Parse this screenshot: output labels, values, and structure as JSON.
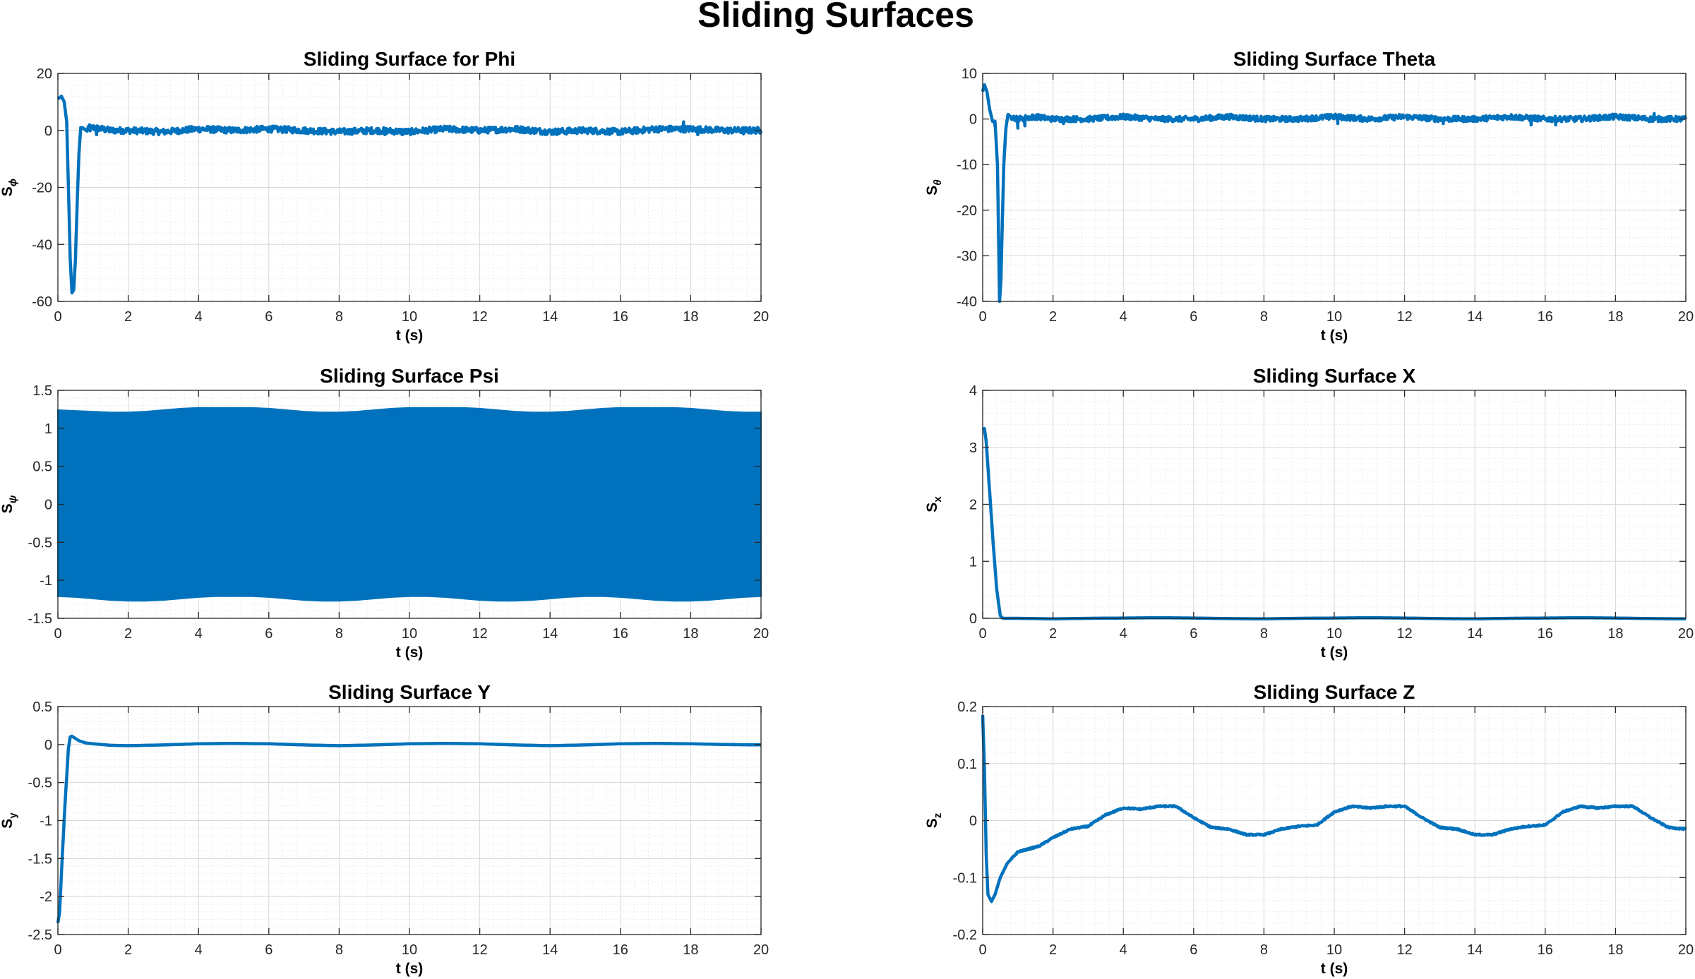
{
  "figure": {
    "title": "Sliding Surfaces",
    "accent_color": "#0072BD"
  },
  "chart_data": [
    {
      "type": "line",
      "title": "Sliding Surface for Phi",
      "xlabel": "t (s)",
      "ylabel": "S",
      "ylabel_sub": "ϕ",
      "ylabel_sub_italic": true,
      "xlim": [
        0,
        20
      ],
      "ylim": [
        -60,
        20
      ],
      "xticks": [
        0,
        2,
        4,
        6,
        8,
        10,
        12,
        14,
        16,
        18,
        20
      ],
      "yticks": [
        20,
        0,
        -20,
        -40,
        -60
      ],
      "grid": true,
      "series": [
        {
          "x": [
            0,
            0.1,
            0.18,
            0.25,
            0.3,
            0.35,
            0.4,
            0.45,
            0.5,
            0.55,
            0.6,
            0.65,
            0.7,
            0.8,
            1,
            1.5,
            2,
            3,
            4,
            5,
            6,
            7,
            8,
            9,
            10,
            11,
            12,
            13,
            14,
            15,
            16,
            17,
            18,
            19,
            20
          ],
          "y": [
            11,
            12,
            10,
            3,
            -20,
            -45,
            -57,
            -56,
            -45,
            -25,
            -8,
            1,
            1,
            0,
            1,
            0,
            0,
            -0.5,
            0.5,
            0,
            0.5,
            0,
            -0.5,
            0,
            -0.5,
            0.5,
            0,
            0.5,
            -0.5,
            0,
            -0.5,
            0.5,
            0.5,
            0,
            0
          ],
          "noise": 1.1,
          "spikes": [
            [
              0.9,
              2
            ],
            [
              1.1,
              -1.5
            ],
            [
              9.3,
              -1.5
            ],
            [
              9.8,
              -1.5
            ],
            [
              17.8,
              3
            ],
            [
              18.2,
              -1.5
            ],
            [
              19.5,
              -1.2
            ]
          ]
        }
      ]
    },
    {
      "type": "line",
      "title": "Sliding Surface Theta",
      "xlabel": "t (s)",
      "ylabel": "S",
      "ylabel_sub": "θ",
      "ylabel_sub_italic": true,
      "xlim": [
        0,
        20
      ],
      "ylim": [
        -40,
        10
      ],
      "xticks": [
        0,
        2,
        4,
        6,
        8,
        10,
        12,
        14,
        16,
        18,
        20
      ],
      "yticks": [
        10,
        0,
        -10,
        -20,
        -30,
        -40
      ],
      "grid": true,
      "series": [
        {
          "x": [
            0,
            0.05,
            0.12,
            0.2,
            0.28,
            0.35,
            0.42,
            0.48,
            0.52,
            0.56,
            0.6,
            0.66,
            0.72,
            0.8,
            1,
            1.5,
            2,
            3,
            4,
            5,
            6,
            7,
            8,
            9,
            10,
            11,
            12,
            13,
            14,
            15,
            16,
            17,
            18,
            19,
            20
          ],
          "y": [
            6,
            7.5,
            6,
            2,
            -0.5,
            -0.5,
            -10,
            -40,
            -35,
            -22,
            -10,
            -2,
            1,
            0.5,
            0,
            0.5,
            0,
            0,
            0.5,
            0,
            0,
            0.5,
            0,
            0,
            0.5,
            0,
            0.5,
            0,
            0,
            0.5,
            0,
            0,
            0.5,
            0,
            0
          ],
          "noise": 0.6,
          "spikes": [
            [
              0.35,
              -1.5
            ],
            [
              1,
              -2
            ],
            [
              1.2,
              -1.5
            ],
            [
              2.3,
              -1
            ],
            [
              9.9,
              1
            ],
            [
              10.1,
              -1
            ],
            [
              13.1,
              -1
            ],
            [
              15.6,
              -1.3
            ],
            [
              16.3,
              -1.3
            ],
            [
              19.1,
              1.2
            ]
          ]
        }
      ]
    },
    {
      "type": "area",
      "title": "Sliding Surface Psi",
      "xlabel": "t (s)",
      "ylabel": "S",
      "ylabel_sub": "ψ",
      "ylabel_sub_italic": true,
      "xlim": [
        0,
        20
      ],
      "ylim": [
        -1.5,
        1.5
      ],
      "xticks": [
        0,
        2,
        4,
        6,
        8,
        10,
        12,
        14,
        16,
        18,
        20
      ],
      "yticks": [
        1.5,
        1,
        0.5,
        0,
        -0.5,
        -1,
        -1.5
      ],
      "grid": true,
      "series": [
        {
          "x": [
            0,
            0.5,
            1,
            1.5,
            2,
            2.5,
            3,
            3.5,
            4,
            4.5,
            5,
            5.5,
            6,
            6.5,
            7,
            7.5,
            8,
            8.5,
            9,
            9.5,
            10,
            10.5,
            11,
            11.5,
            12,
            12.5,
            13,
            13.5,
            14,
            14.5,
            15,
            15.5,
            16,
            16.5,
            17,
            17.5,
            18,
            18.5,
            19,
            19.5,
            20
          ],
          "upper": [
            1.24,
            1.23,
            1.22,
            1.21,
            1.21,
            1.22,
            1.24,
            1.26,
            1.27,
            1.27,
            1.27,
            1.27,
            1.26,
            1.24,
            1.22,
            1.21,
            1.21,
            1.22,
            1.24,
            1.26,
            1.27,
            1.27,
            1.27,
            1.27,
            1.26,
            1.24,
            1.22,
            1.21,
            1.21,
            1.22,
            1.24,
            1.26,
            1.27,
            1.27,
            1.27,
            1.27,
            1.26,
            1.24,
            1.22,
            1.21,
            1.21
          ],
          "lower": [
            -1.21,
            -1.22,
            -1.24,
            -1.26,
            -1.27,
            -1.27,
            -1.26,
            -1.24,
            -1.22,
            -1.21,
            -1.21,
            -1.21,
            -1.22,
            -1.24,
            -1.26,
            -1.27,
            -1.27,
            -1.26,
            -1.24,
            -1.22,
            -1.21,
            -1.21,
            -1.22,
            -1.24,
            -1.26,
            -1.27,
            -1.27,
            -1.26,
            -1.24,
            -1.22,
            -1.21,
            -1.21,
            -1.22,
            -1.24,
            -1.26,
            -1.27,
            -1.27,
            -1.26,
            -1.24,
            -1.22,
            -1.21
          ]
        }
      ]
    },
    {
      "type": "line",
      "title": "Sliding Surface X",
      "xlabel": "t (s)",
      "ylabel": "S",
      "ylabel_sub": "x",
      "ylabel_sub_italic": false,
      "xlim": [
        0,
        20
      ],
      "ylim": [
        0,
        4
      ],
      "xticks": [
        0,
        2,
        4,
        6,
        8,
        10,
        12,
        14,
        16,
        18,
        20
      ],
      "yticks": [
        4,
        3,
        2,
        1,
        0
      ],
      "grid": true,
      "series": [
        {
          "x": [
            0,
            0.05,
            0.1,
            0.2,
            0.3,
            0.4,
            0.5,
            0.55,
            0.6,
            0.7,
            1,
            2,
            3,
            4,
            5,
            6,
            7,
            8,
            9,
            10,
            11,
            12,
            13,
            14,
            15,
            16,
            17,
            18,
            19,
            20
          ],
          "y": [
            3.3,
            3.33,
            3.1,
            2.2,
            1.3,
            0.5,
            0.05,
            0.01,
            0,
            0,
            0,
            -0.01,
            0,
            0.005,
            0.01,
            0.005,
            -0.005,
            -0.01,
            0,
            0.005,
            0.01,
            0.005,
            -0.005,
            -0.01,
            0,
            0.005,
            0.01,
            0.005,
            -0.005,
            -0.01
          ],
          "noise": 0,
          "spikes": []
        }
      ]
    },
    {
      "type": "line",
      "title": "Sliding Surface Y",
      "xlabel": "t (s)",
      "ylabel": "S",
      "ylabel_sub": "y",
      "ylabel_sub_italic": false,
      "xlim": [
        0,
        20
      ],
      "ylim": [
        -2.5,
        0.5
      ],
      "xticks": [
        0,
        2,
        4,
        6,
        8,
        10,
        12,
        14,
        16,
        18,
        20
      ],
      "yticks": [
        0.5,
        0,
        -0.5,
        -1,
        -1.5,
        -2,
        -2.5
      ],
      "grid": true,
      "series": [
        {
          "x": [
            0,
            0.05,
            0.1,
            0.2,
            0.3,
            0.35,
            0.4,
            0.5,
            0.6,
            0.8,
            1,
            1.5,
            2,
            3,
            4,
            5,
            6,
            7,
            8,
            9,
            10,
            11,
            12,
            13,
            14,
            15,
            16,
            17,
            18,
            19,
            20
          ],
          "y": [
            -2.35,
            -2.2,
            -1.7,
            -0.8,
            -0.05,
            0.1,
            0.11,
            0.08,
            0.05,
            0.02,
            0.01,
            -0.01,
            -0.015,
            -0.005,
            0.01,
            0.015,
            0.01,
            -0.005,
            -0.015,
            -0.005,
            0.01,
            0.015,
            0.01,
            -0.005,
            -0.015,
            -0.005,
            0.01,
            0.015,
            0.01,
            0,
            -0.005
          ],
          "noise": 0,
          "spikes": []
        }
      ]
    },
    {
      "type": "line",
      "title": "Sliding Surface Z",
      "xlabel": "t (s)",
      "ylabel": "S",
      "ylabel_sub": "z",
      "ylabel_sub_italic": false,
      "xlim": [
        0,
        20
      ],
      "ylim": [
        -0.2,
        0.2
      ],
      "xticks": [
        0,
        2,
        4,
        6,
        8,
        10,
        12,
        14,
        16,
        18,
        20
      ],
      "yticks": [
        0.2,
        0.1,
        0,
        -0.1,
        -0.2
      ],
      "grid": true,
      "series": [
        {
          "x": [
            0,
            0.05,
            0.1,
            0.15,
            0.25,
            0.35,
            0.5,
            0.7,
            1,
            1.3,
            1.6,
            2,
            2.5,
            3,
            3.5,
            4,
            4.5,
            5,
            5.5,
            6,
            6.5,
            7,
            7.5,
            8,
            8.5,
            9,
            9.5,
            10,
            10.5,
            11,
            11.5,
            12,
            12.5,
            13,
            13.5,
            14,
            14.5,
            15,
            15.5,
            16,
            16.5,
            17,
            17.5,
            18,
            18.5,
            19,
            19.5,
            20
          ],
          "y": [
            0.185,
            0.09,
            -0.06,
            -0.13,
            -0.142,
            -0.13,
            -0.1,
            -0.075,
            -0.055,
            -0.05,
            -0.045,
            -0.03,
            -0.015,
            -0.01,
            0.01,
            0.022,
            0.02,
            0.025,
            0.025,
            0.005,
            -0.012,
            -0.015,
            -0.025,
            -0.025,
            -0.015,
            -0.01,
            -0.008,
            0.015,
            0.025,
            0.022,
            0.025,
            0.025,
            0.005,
            -0.012,
            -0.015,
            -0.025,
            -0.025,
            -0.015,
            -0.01,
            -0.008,
            0.015,
            0.025,
            0.022,
            0.025,
            0.025,
            0.005,
            -0.012,
            -0.015
          ],
          "noise": 0.0012,
          "spikes": []
        }
      ]
    }
  ]
}
